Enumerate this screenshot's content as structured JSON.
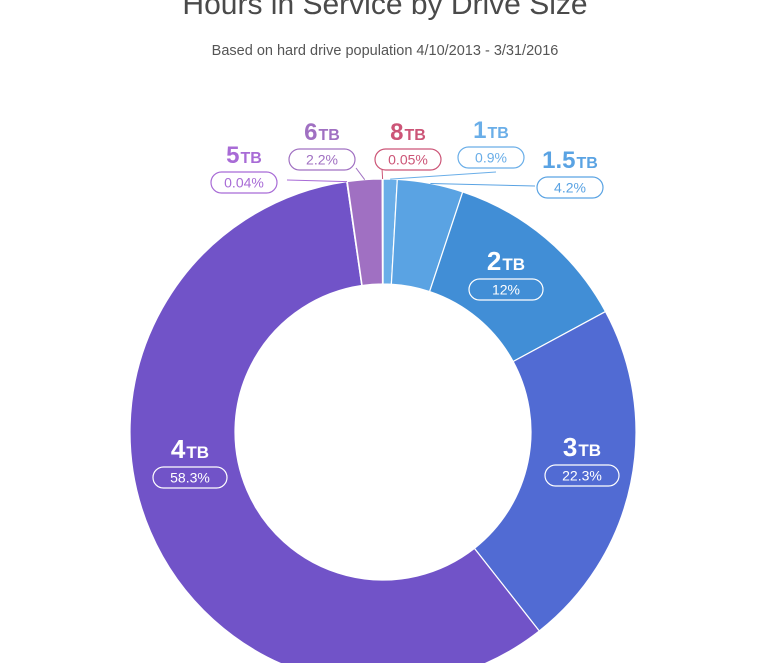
{
  "chart_data": {
    "type": "pie",
    "style": "donut",
    "title": "Hours in Service by Drive Size",
    "subtitle": "Based on hard drive population 4/10/2013 - 3/31/2016",
    "slices": [
      {
        "size": "1",
        "unit": "TB",
        "value": 0.9,
        "label": "0.9%",
        "color": "#6aaee8"
      },
      {
        "size": "1.5",
        "unit": "TB",
        "value": 4.2,
        "label": "4.2%",
        "color": "#5aa3e3"
      },
      {
        "size": "2",
        "unit": "TB",
        "value": 12,
        "label": "12%",
        "color": "#418ed6"
      },
      {
        "size": "3",
        "unit": "TB",
        "value": 22.3,
        "label": "22.3%",
        "color": "#516bd3"
      },
      {
        "size": "4",
        "unit": "TB",
        "value": 58.3,
        "label": "58.3%",
        "color": "#7153c8"
      },
      {
        "size": "5",
        "unit": "TB",
        "value": 0.04,
        "label": "0.04%",
        "color": "#a86bd6"
      },
      {
        "size": "6",
        "unit": "TB",
        "value": 2.2,
        "label": "2.2%",
        "color": "#a070c2"
      },
      {
        "size": "8",
        "unit": "TB",
        "value": 0.05,
        "label": "0.05%",
        "color": "#cc5577"
      }
    ]
  }
}
